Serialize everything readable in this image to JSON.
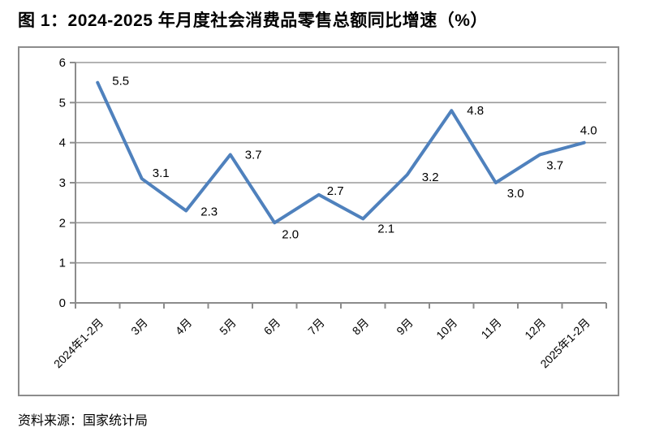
{
  "figure": {
    "title": "图 1：2024-2025 年月度社会消费品零售总额同比增速（%）",
    "source": "资料来源：国家统计局"
  },
  "chart_data": {
    "type": "line",
    "title": "图 1：2024-2025 年月度社会消费品零售总额同比增速（%）",
    "categories": [
      "2024年1-2月",
      "3月",
      "4月",
      "5月",
      "6月",
      "7月",
      "8月",
      "9月",
      "10月",
      "11月",
      "12月",
      "2025年1-2月"
    ],
    "values": [
      5.5,
      3.1,
      2.3,
      3.7,
      2.0,
      2.7,
      2.1,
      3.2,
      4.8,
      3.0,
      3.7,
      4.0
    ],
    "data_labels": [
      "5.5",
      "3.1",
      "2.3",
      "3.7",
      "2.0",
      "2.7",
      "2.1",
      "3.2",
      "4.8",
      "3.0",
      "3.7",
      "4.0"
    ],
    "xlabel": "",
    "ylabel": "",
    "ylim": [
      0,
      6
    ],
    "yticks": [
      0,
      1,
      2,
      3,
      4,
      5,
      6
    ],
    "grid": true,
    "legend": "none",
    "source_note": "资料来源：国家统计局",
    "colors": {
      "line": "#4F81BD",
      "gridline": "#9a9a9a",
      "axis": "#8c8c8c",
      "frame_border": "#8c8c8c",
      "text": "#000000",
      "background": "#ffffff"
    }
  }
}
